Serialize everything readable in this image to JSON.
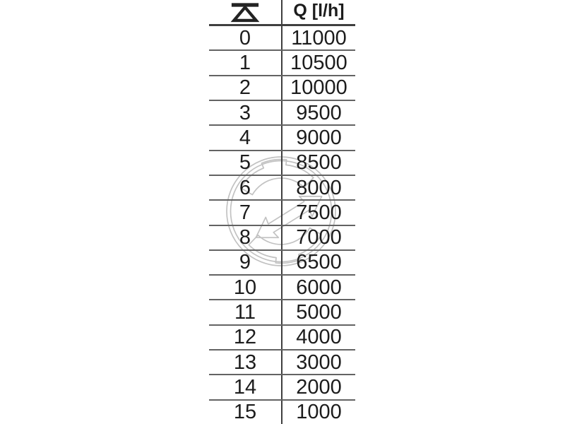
{
  "colors": {
    "background": "#ffffff",
    "row_line": "#636363",
    "strong_line": "#3f3f3f",
    "text": "#1c1c1c",
    "watermark": "#c2c2c2"
  },
  "table": {
    "col1_header_symbol": "valve-presetting-icon",
    "col2_header": "Q [l/h]",
    "rows": [
      {
        "setting": "0",
        "flow": "11000"
      },
      {
        "setting": "1",
        "flow": "10500"
      },
      {
        "setting": "2",
        "flow": "10000"
      },
      {
        "setting": "3",
        "flow": "9500"
      },
      {
        "setting": "4",
        "flow": "9000"
      },
      {
        "setting": "5",
        "flow": "8500"
      },
      {
        "setting": "6",
        "flow": "8000"
      },
      {
        "setting": "7",
        "flow": "7500"
      },
      {
        "setting": "8",
        "flow": "7000"
      },
      {
        "setting": "9",
        "flow": "6500"
      },
      {
        "setting": "10",
        "flow": "6000"
      },
      {
        "setting": "11",
        "flow": "5000"
      },
      {
        "setting": "12",
        "flow": "4000"
      },
      {
        "setting": "13",
        "flow": "3000"
      },
      {
        "setting": "14",
        "flow": "2000"
      },
      {
        "setting": "15",
        "flow": "1000"
      }
    ]
  },
  "watermark": {
    "name": "circular-arrows-logo"
  },
  "chart_data": {
    "type": "table",
    "title": "Valve presetting vs. flow rate",
    "columns": [
      "presetting",
      "Q [l/h]"
    ],
    "presetting": [
      0,
      1,
      2,
      3,
      4,
      5,
      6,
      7,
      8,
      9,
      10,
      11,
      12,
      13,
      14,
      15
    ],
    "flow_l_per_h": [
      11000,
      10500,
      10000,
      9500,
      9000,
      8500,
      8000,
      7500,
      7000,
      6500,
      6000,
      5000,
      4000,
      3000,
      2000,
      1000
    ]
  }
}
